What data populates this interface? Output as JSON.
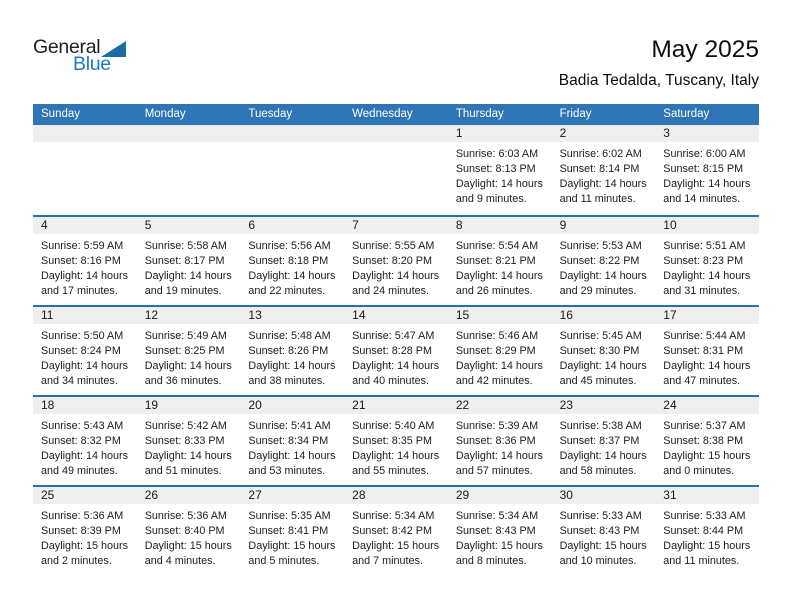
{
  "logo": {
    "general": "General",
    "blue": "Blue"
  },
  "title": "May 2025",
  "subtitle": "Badia Tedalda, Tuscany, Italy",
  "colors": {
    "header_blue": "#2e75b6",
    "week_divider_blue": "#2471ae",
    "day_band_gray": "#efefef",
    "logo_text_blue": "#1d7ac0",
    "logo_triangle_blue": "#1b6aa8"
  },
  "weekdays": [
    "Sunday",
    "Monday",
    "Tuesday",
    "Wednesday",
    "Thursday",
    "Friday",
    "Saturday"
  ],
  "weeks": [
    {
      "days": [
        null,
        null,
        null,
        null,
        {
          "day": "1",
          "sunrise": "Sunrise: 6:03 AM",
          "sunset": "Sunset: 8:13 PM",
          "daylight_line1": "Daylight: 14 hours",
          "daylight_line2": "and 9 minutes."
        },
        {
          "day": "2",
          "sunrise": "Sunrise: 6:02 AM",
          "sunset": "Sunset: 8:14 PM",
          "daylight_line1": "Daylight: 14 hours",
          "daylight_line2": "and 11 minutes."
        },
        {
          "day": "3",
          "sunrise": "Sunrise: 6:00 AM",
          "sunset": "Sunset: 8:15 PM",
          "daylight_line1": "Daylight: 14 hours",
          "daylight_line2": "and 14 minutes."
        }
      ]
    },
    {
      "days": [
        {
          "day": "4",
          "sunrise": "Sunrise: 5:59 AM",
          "sunset": "Sunset: 8:16 PM",
          "daylight_line1": "Daylight: 14 hours",
          "daylight_line2": "and 17 minutes."
        },
        {
          "day": "5",
          "sunrise": "Sunrise: 5:58 AM",
          "sunset": "Sunset: 8:17 PM",
          "daylight_line1": "Daylight: 14 hours",
          "daylight_line2": "and 19 minutes."
        },
        {
          "day": "6",
          "sunrise": "Sunrise: 5:56 AM",
          "sunset": "Sunset: 8:18 PM",
          "daylight_line1": "Daylight: 14 hours",
          "daylight_line2": "and 22 minutes."
        },
        {
          "day": "7",
          "sunrise": "Sunrise: 5:55 AM",
          "sunset": "Sunset: 8:20 PM",
          "daylight_line1": "Daylight: 14 hours",
          "daylight_line2": "and 24 minutes."
        },
        {
          "day": "8",
          "sunrise": "Sunrise: 5:54 AM",
          "sunset": "Sunset: 8:21 PM",
          "daylight_line1": "Daylight: 14 hours",
          "daylight_line2": "and 26 minutes."
        },
        {
          "day": "9",
          "sunrise": "Sunrise: 5:53 AM",
          "sunset": "Sunset: 8:22 PM",
          "daylight_line1": "Daylight: 14 hours",
          "daylight_line2": "and 29 minutes."
        },
        {
          "day": "10",
          "sunrise": "Sunrise: 5:51 AM",
          "sunset": "Sunset: 8:23 PM",
          "daylight_line1": "Daylight: 14 hours",
          "daylight_line2": "and 31 minutes."
        }
      ]
    },
    {
      "days": [
        {
          "day": "11",
          "sunrise": "Sunrise: 5:50 AM",
          "sunset": "Sunset: 8:24 PM",
          "daylight_line1": "Daylight: 14 hours",
          "daylight_line2": "and 34 minutes."
        },
        {
          "day": "12",
          "sunrise": "Sunrise: 5:49 AM",
          "sunset": "Sunset: 8:25 PM",
          "daylight_line1": "Daylight: 14 hours",
          "daylight_line2": "and 36 minutes."
        },
        {
          "day": "13",
          "sunrise": "Sunrise: 5:48 AM",
          "sunset": "Sunset: 8:26 PM",
          "daylight_line1": "Daylight: 14 hours",
          "daylight_line2": "and 38 minutes."
        },
        {
          "day": "14",
          "sunrise": "Sunrise: 5:47 AM",
          "sunset": "Sunset: 8:28 PM",
          "daylight_line1": "Daylight: 14 hours",
          "daylight_line2": "and 40 minutes."
        },
        {
          "day": "15",
          "sunrise": "Sunrise: 5:46 AM",
          "sunset": "Sunset: 8:29 PM",
          "daylight_line1": "Daylight: 14 hours",
          "daylight_line2": "and 42 minutes."
        },
        {
          "day": "16",
          "sunrise": "Sunrise: 5:45 AM",
          "sunset": "Sunset: 8:30 PM",
          "daylight_line1": "Daylight: 14 hours",
          "daylight_line2": "and 45 minutes."
        },
        {
          "day": "17",
          "sunrise": "Sunrise: 5:44 AM",
          "sunset": "Sunset: 8:31 PM",
          "daylight_line1": "Daylight: 14 hours",
          "daylight_line2": "and 47 minutes."
        }
      ]
    },
    {
      "days": [
        {
          "day": "18",
          "sunrise": "Sunrise: 5:43 AM",
          "sunset": "Sunset: 8:32 PM",
          "daylight_line1": "Daylight: 14 hours",
          "daylight_line2": "and 49 minutes."
        },
        {
          "day": "19",
          "sunrise": "Sunrise: 5:42 AM",
          "sunset": "Sunset: 8:33 PM",
          "daylight_line1": "Daylight: 14 hours",
          "daylight_line2": "and 51 minutes."
        },
        {
          "day": "20",
          "sunrise": "Sunrise: 5:41 AM",
          "sunset": "Sunset: 8:34 PM",
          "daylight_line1": "Daylight: 14 hours",
          "daylight_line2": "and 53 minutes."
        },
        {
          "day": "21",
          "sunrise": "Sunrise: 5:40 AM",
          "sunset": "Sunset: 8:35 PM",
          "daylight_line1": "Daylight: 14 hours",
          "daylight_line2": "and 55 minutes."
        },
        {
          "day": "22",
          "sunrise": "Sunrise: 5:39 AM",
          "sunset": "Sunset: 8:36 PM",
          "daylight_line1": "Daylight: 14 hours",
          "daylight_line2": "and 57 minutes."
        },
        {
          "day": "23",
          "sunrise": "Sunrise: 5:38 AM",
          "sunset": "Sunset: 8:37 PM",
          "daylight_line1": "Daylight: 14 hours",
          "daylight_line2": "and 58 minutes."
        },
        {
          "day": "24",
          "sunrise": "Sunrise: 5:37 AM",
          "sunset": "Sunset: 8:38 PM",
          "daylight_line1": "Daylight: 15 hours",
          "daylight_line2": "and 0 minutes."
        }
      ]
    },
    {
      "days": [
        {
          "day": "25",
          "sunrise": "Sunrise: 5:36 AM",
          "sunset": "Sunset: 8:39 PM",
          "daylight_line1": "Daylight: 15 hours",
          "daylight_line2": "and 2 minutes."
        },
        {
          "day": "26",
          "sunrise": "Sunrise: 5:36 AM",
          "sunset": "Sunset: 8:40 PM",
          "daylight_line1": "Daylight: 15 hours",
          "daylight_line2": "and 4 minutes."
        },
        {
          "day": "27",
          "sunrise": "Sunrise: 5:35 AM",
          "sunset": "Sunset: 8:41 PM",
          "daylight_line1": "Daylight: 15 hours",
          "daylight_line2": "and 5 minutes."
        },
        {
          "day": "28",
          "sunrise": "Sunrise: 5:34 AM",
          "sunset": "Sunset: 8:42 PM",
          "daylight_line1": "Daylight: 15 hours",
          "daylight_line2": "and 7 minutes."
        },
        {
          "day": "29",
          "sunrise": "Sunrise: 5:34 AM",
          "sunset": "Sunset: 8:43 PM",
          "daylight_line1": "Daylight: 15 hours",
          "daylight_line2": "and 8 minutes."
        },
        {
          "day": "30",
          "sunrise": "Sunrise: 5:33 AM",
          "sunset": "Sunset: 8:43 PM",
          "daylight_line1": "Daylight: 15 hours",
          "daylight_line2": "and 10 minutes."
        },
        {
          "day": "31",
          "sunrise": "Sunrise: 5:33 AM",
          "sunset": "Sunset: 8:44 PM",
          "daylight_line1": "Daylight: 15 hours",
          "daylight_line2": "and 11 minutes."
        }
      ]
    }
  ]
}
